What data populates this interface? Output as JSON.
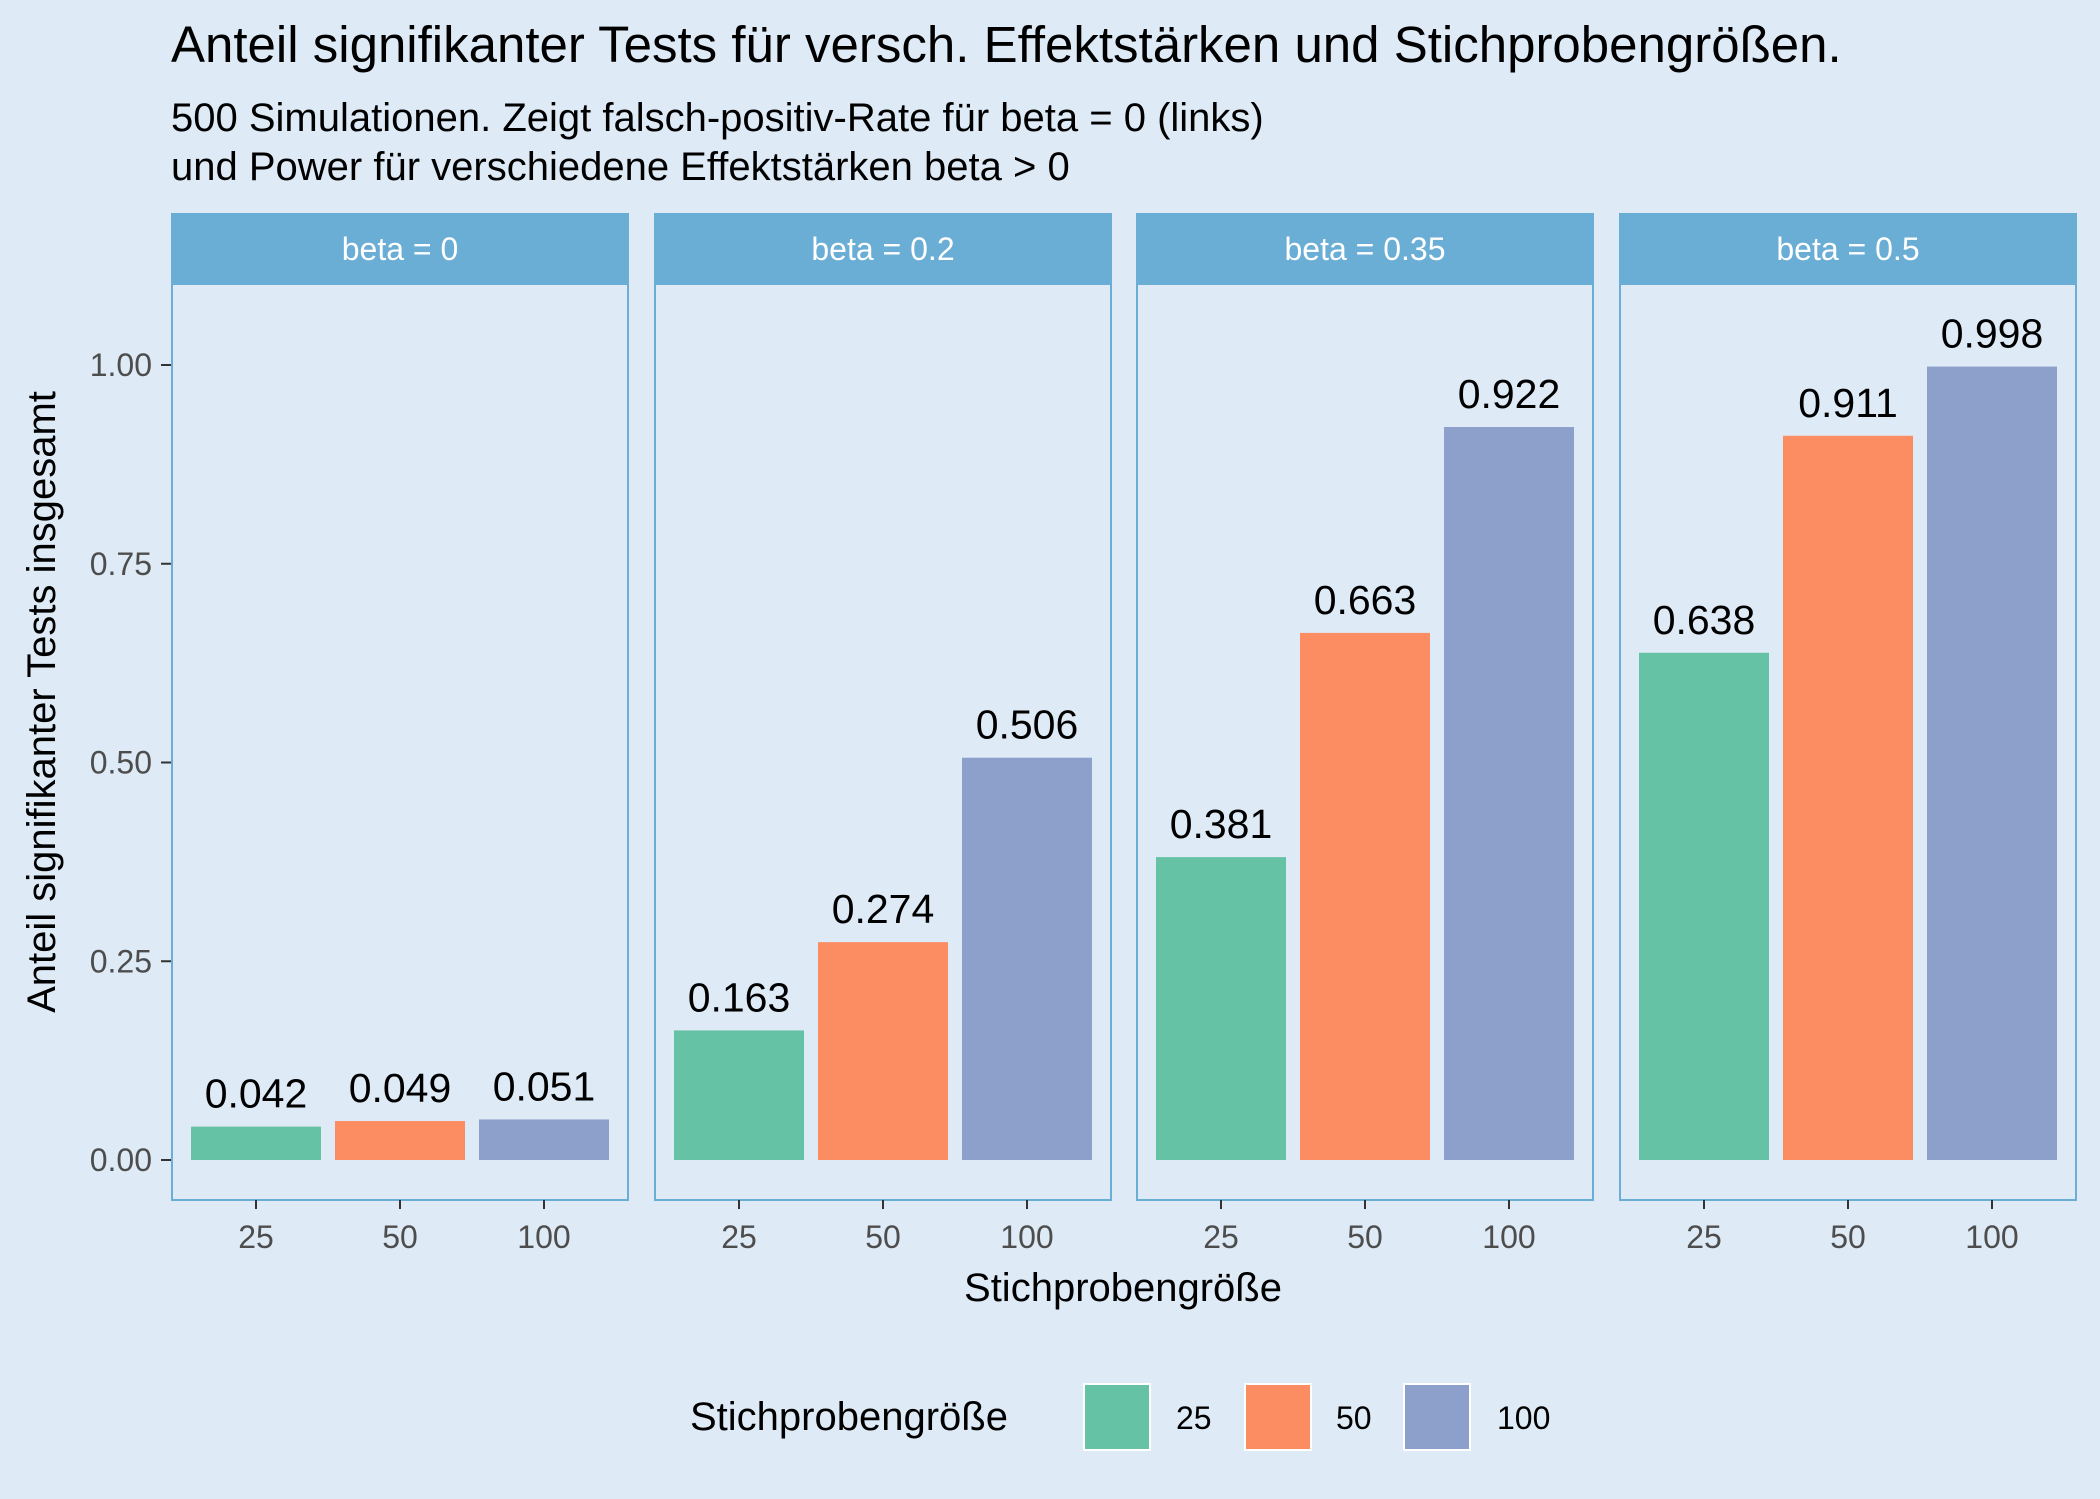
{
  "chart_data": {
    "type": "bar",
    "title": "Anteil signifikanter Tests für versch. Effektstärken und Stichprobengrößen.",
    "subtitle_lines": [
      "500 Simulationen. Zeigt falsch-positiv-Rate für beta = 0 (links)",
      "und Power für verschiedene Effektstärken beta > 0"
    ],
    "xlabel": "Stichprobengröße",
    "ylabel": "Anteil signifikanter Tests insgesamt",
    "ylim": [
      0,
      1.1
    ],
    "yticks": [
      {
        "value": 0,
        "label": "0.00"
      },
      {
        "value": 0.25,
        "label": "0.25"
      },
      {
        "value": 0.5,
        "label": "0.50"
      },
      {
        "value": 0.75,
        "label": "0.75"
      },
      {
        "value": 1.0,
        "label": "1.00"
      }
    ],
    "categories": [
      "25",
      "50",
      "100"
    ],
    "facets": [
      {
        "label": "beta = 0",
        "values": [
          0.042,
          0.049,
          0.051
        ],
        "value_labels": [
          "0.042",
          "0.049",
          "0.051"
        ]
      },
      {
        "label": "beta = 0.2",
        "values": [
          0.163,
          0.274,
          0.506
        ],
        "value_labels": [
          "0.163",
          "0.274",
          "0.506"
        ]
      },
      {
        "label": "beta = 0.35",
        "values": [
          0.381,
          0.663,
          0.922
        ],
        "value_labels": [
          "0.381",
          "0.663",
          "0.922"
        ]
      },
      {
        "label": "beta = 0.5",
        "values": [
          0.638,
          0.911,
          0.998
        ],
        "value_labels": [
          "0.638",
          "0.911",
          "0.998"
        ]
      }
    ],
    "colors": {
      "25": "#66c2a5",
      "50": "#fc8d62",
      "100": "#8da0cb"
    },
    "legend": {
      "title": "Stichprobengröße",
      "position": "bottom",
      "entries": [
        "25",
        "50",
        "100"
      ]
    },
    "grid": false
  },
  "theme": {
    "background": "#deeaf6",
    "strip_fill": "#6aaed6",
    "panel_border": "#6aaed6"
  }
}
